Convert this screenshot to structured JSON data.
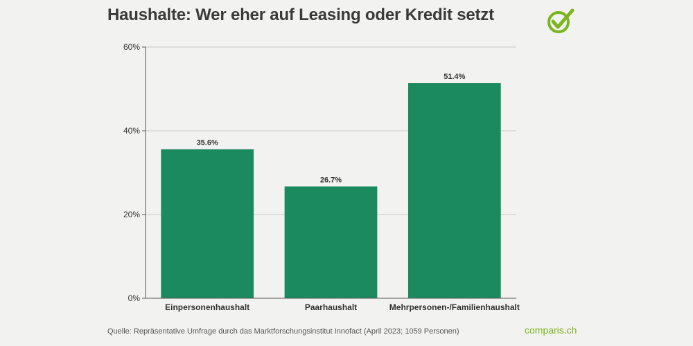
{
  "header": {
    "title": "Haushalte: Wer eher auf Leasing oder Kredit setzt"
  },
  "footer": {
    "source": "Quelle: Repräsentative Umfrage durch das Marktforschungsinstitut Innofact (April 2023; 1059 Personen)",
    "brand": "comparis.ch"
  },
  "colors": {
    "bar": "#1b8a5f",
    "brand": "#7ab51d",
    "grid": "#c8c8c8",
    "axis": "#555555",
    "text": "#333333"
  },
  "logo_icon": "check-circle-icon",
  "chart_data": {
    "type": "bar",
    "title": "Haushalte: Wer eher auf Leasing oder Kredit setzt",
    "xlabel": "",
    "ylabel": "",
    "categories": [
      "Einpersonenhaushalt",
      "Paarhaushalt",
      "Mehrpersonen-/Familienhaushalt"
    ],
    "values": [
      35.6,
      26.7,
      51.4
    ],
    "value_labels": [
      "35.6%",
      "26.7%",
      "51.4%"
    ],
    "ylim": [
      0,
      60
    ],
    "yticks": [
      0,
      20,
      40,
      60
    ],
    "ytick_labels": [
      "0%",
      "20%",
      "40%",
      "60%"
    ],
    "grid": true,
    "legend": "none"
  }
}
